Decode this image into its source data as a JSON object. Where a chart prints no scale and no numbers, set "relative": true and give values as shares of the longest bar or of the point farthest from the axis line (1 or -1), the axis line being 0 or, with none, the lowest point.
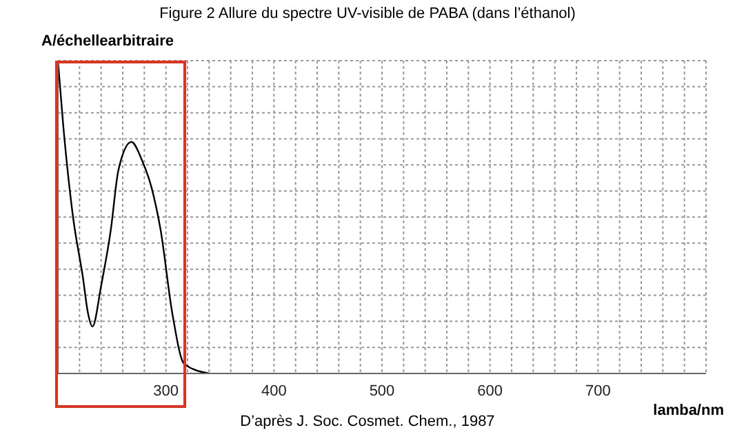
{
  "chart_data": {
    "type": "line",
    "title": "Figure 2  Allure du spectre UV-visible de PABA (dans l’éthanol)",
    "xlabel": "lamba/nm",
    "ylabel": "A/échellearbitraire",
    "annotations": [
      "D’après J. Soc. Cosmet. Chem., 1987"
    ],
    "relative": true,
    "grid": true,
    "tick_labels": "x",
    "marker": "none",
    "xlim": [
      200,
      800
    ],
    "xticks": [
      {
        "value": 200,
        "label": null
      },
      {
        "value": 220,
        "label": null
      },
      {
        "value": 240,
        "label": null
      },
      {
        "value": 260,
        "label": null
      },
      {
        "value": 280,
        "label": null
      },
      300,
      {
        "value": 320,
        "label": null
      },
      {
        "value": 340,
        "label": null
      },
      {
        "value": 360,
        "label": null
      },
      {
        "value": 380,
        "label": null
      },
      400,
      {
        "value": 420,
        "label": null
      },
      {
        "value": 440,
        "label": null
      },
      {
        "value": 460,
        "label": null
      },
      {
        "value": 480,
        "label": null
      },
      500,
      {
        "value": 520,
        "label": null
      },
      {
        "value": 540,
        "label": null
      },
      {
        "value": 560,
        "label": null
      },
      {
        "value": 580,
        "label": null
      },
      600,
      {
        "value": 620,
        "label": null
      },
      {
        "value": 640,
        "label": null
      },
      {
        "value": 660,
        "label": null
      },
      {
        "value": 680,
        "label": null
      },
      700,
      {
        "value": 720,
        "label": null
      },
      {
        "value": 740,
        "label": null
      },
      {
        "value": 760,
        "label": null
      },
      {
        "value": 780,
        "label": null
      },
      {
        "value": 800,
        "label": null
      }
    ],
    "x": [
      200,
      205,
      214,
      223,
      228,
      232,
      240,
      249,
      256,
      268,
      278,
      287,
      295,
      306,
      317,
      340
    ],
    "series": [
      {
        "color": "#000000",
        "values": [
          1,
          0.79,
          0.5,
          0.31,
          0.19,
          0.15,
          0.28,
          0.46,
          0.65,
          0.74,
          0.68,
          0.59,
          0.46,
          0.19,
          0.03,
          0
        ]
      }
    ]
  }
}
